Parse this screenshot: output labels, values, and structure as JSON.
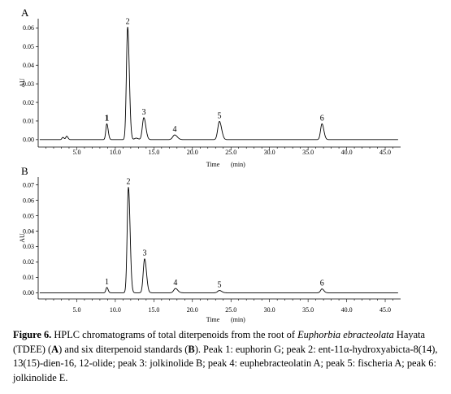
{
  "chart_data": [
    {
      "type": "line",
      "panel_label": "A",
      "xlabel": "Time",
      "xunit": "(min)",
      "ylabel": "AU",
      "xlim": [
        0,
        47
      ],
      "ylim": [
        -0.004,
        0.065
      ],
      "xticks": [
        5.0,
        10.0,
        15.0,
        20.0,
        25.0,
        30.0,
        35.0,
        40.0,
        45.0
      ],
      "xtick_labels": [
        "5.0",
        "10.0",
        "15.0",
        "20.0",
        "25.0",
        "30.0",
        "35.0",
        "40.0",
        "45.0"
      ],
      "yticks": [
        0.0,
        0.01,
        0.02,
        0.03,
        0.04,
        0.05,
        0.06
      ],
      "ytick_labels": [
        "0.00",
        "0.01",
        "0.02",
        "0.03",
        "0.04",
        "0.05",
        "0.06"
      ],
      "peaks": [
        {
          "label": "",
          "rt": 3.2,
          "height": 0.0012,
          "width": 0.12
        },
        {
          "label": "",
          "rt": 3.7,
          "height": 0.0018,
          "width": 0.12
        },
        {
          "label": "1",
          "rt": 8.9,
          "height": 0.0085,
          "width": 0.13
        },
        {
          "label": "2",
          "rt": 11.6,
          "height": 0.0605,
          "width": 0.16
        },
        {
          "label": "",
          "rt": 12.7,
          "height": 0.0008,
          "width": 0.2
        },
        {
          "label": "3",
          "rt": 13.7,
          "height": 0.0118,
          "width": 0.19
        },
        {
          "label": "4",
          "rt": 17.7,
          "height": 0.0025,
          "width": 0.25
        },
        {
          "label": "5",
          "rt": 23.5,
          "height": 0.0098,
          "width": 0.21
        },
        {
          "label": "6",
          "rt": 36.8,
          "height": 0.0085,
          "width": 0.18
        }
      ]
    },
    {
      "type": "line",
      "panel_label": "B",
      "xlabel": "Time",
      "xunit": "(min)",
      "ylabel": "AU",
      "xlim": [
        0,
        47
      ],
      "ylim": [
        -0.004,
        0.075
      ],
      "xticks": [
        5.0,
        10.0,
        15.0,
        20.0,
        25.0,
        30.0,
        35.0,
        40.0,
        45.0
      ],
      "xtick_labels": [
        "5.0",
        "10.0",
        "15.0",
        "20.0",
        "25.0",
        "30.0",
        "35.0",
        "40.0",
        "45.0"
      ],
      "yticks": [
        0.0,
        0.01,
        0.02,
        0.03,
        0.04,
        0.05,
        0.06,
        0.07
      ],
      "ytick_labels": [
        "0.00",
        "0.01",
        "0.02",
        "0.03",
        "0.04",
        "0.05",
        "0.06",
        "0.07"
      ],
      "peaks": [
        {
          "label": "1",
          "rt": 8.9,
          "height": 0.0035,
          "width": 0.12
        },
        {
          "label": "2",
          "rt": 11.7,
          "height": 0.0685,
          "width": 0.16
        },
        {
          "label": "3",
          "rt": 13.8,
          "height": 0.022,
          "width": 0.18
        },
        {
          "label": "4",
          "rt": 17.8,
          "height": 0.0028,
          "width": 0.22
        },
        {
          "label": "5",
          "rt": 23.5,
          "height": 0.0015,
          "width": 0.22
        },
        {
          "label": "6",
          "rt": 36.8,
          "height": 0.0025,
          "width": 0.18
        }
      ]
    }
  ],
  "caption": {
    "bold_title": "Figure 6.",
    "text_1": " HPLC chromatograms of total diterpenoids from the root of ",
    "species": "Euphorbia ebracteolata",
    "text_2": " Hayata (TDEE) (",
    "a": "A",
    "text_3": ") and six diterpenoid standards (",
    "b": "B",
    "text_4": "). Peak 1: euphorin G; peak 2: ent-11α-hydroxyabicta-8(14), 13(15)-dien-16, 12-olide; peak 3: jolkinolide B; peak 4: euphebracteolatin A; peak 5: fischeria A; peak 6: jolkinolide E."
  }
}
